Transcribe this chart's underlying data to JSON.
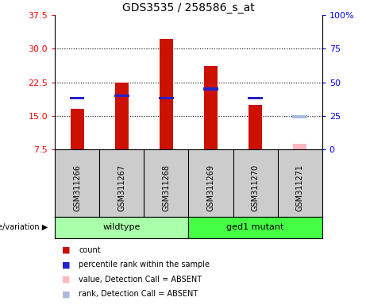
{
  "title": "GDS3535 / 258586_s_at",
  "samples": [
    "GSM311266",
    "GSM311267",
    "GSM311268",
    "GSM311269",
    "GSM311270",
    "GSM311271"
  ],
  "count_values": [
    16.5,
    22.5,
    32.2,
    26.2,
    17.5,
    8.8
  ],
  "rank_values": [
    19.0,
    19.5,
    19.0,
    21.0,
    19.0,
    14.8
  ],
  "absent_flags": [
    false,
    false,
    false,
    false,
    false,
    true
  ],
  "ylim_left": [
    7.5,
    37.5
  ],
  "ylim_right": [
    0,
    100
  ],
  "yticks_left": [
    7.5,
    15.0,
    22.5,
    30.0,
    37.5
  ],
  "yticks_right": [
    0,
    25,
    50,
    75,
    100
  ],
  "bar_color_present": "#CC1100",
  "bar_color_absent": "#FFB6C1",
  "rank_color_present": "#2222CC",
  "rank_color_absent": "#AABBDD",
  "bg_color": "#FFFFFF",
  "plot_bg_color": "#FFFFFF",
  "sample_bg_color": "#CCCCCC",
  "group_color_wildtype": "#AAFFAA",
  "group_color_mutant": "#44FF44",
  "bar_width": 0.3,
  "grid_lines": [
    15.0,
    22.5,
    30.0
  ],
  "legend_items": [
    {
      "color": "#CC1100",
      "label": "count"
    },
    {
      "color": "#2222CC",
      "label": "percentile rank within the sample"
    },
    {
      "color": "#FFB6C1",
      "label": "value, Detection Call = ABSENT"
    },
    {
      "color": "#AABBDD",
      "label": "rank, Detection Call = ABSENT"
    }
  ]
}
